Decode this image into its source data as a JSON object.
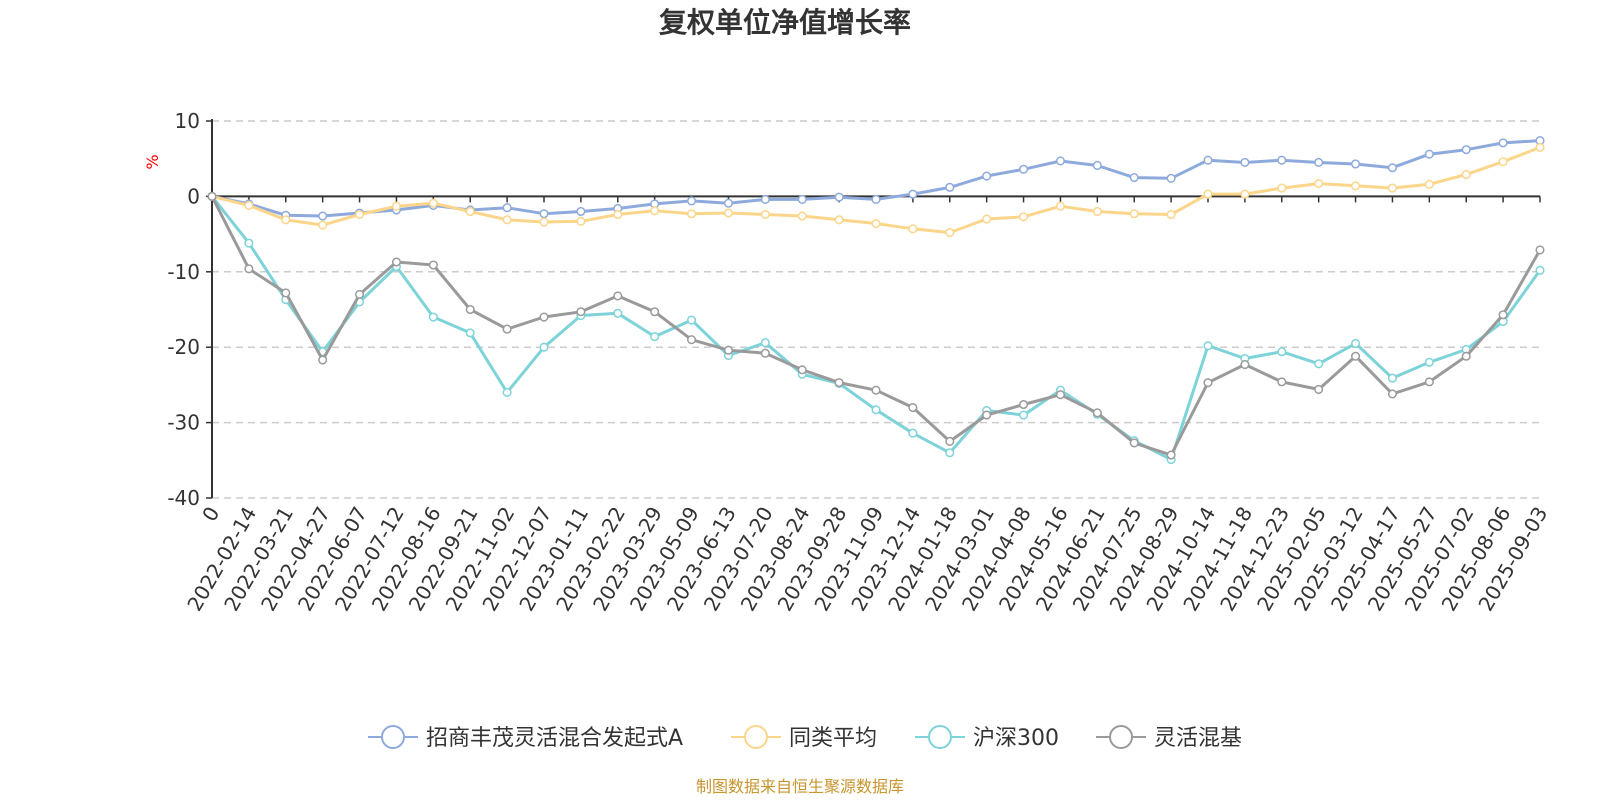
{
  "chart_data": {
    "type": "line",
    "title": "复权单位净值增长率",
    "ylabel": "%",
    "ylim": [
      -40,
      10
    ],
    "y_ticks": [
      10,
      0,
      -10,
      -20,
      -30,
      -40
    ],
    "grid": true,
    "legend_position": "bottom",
    "x_tick_labels": [
      "0",
      "2022-02-14",
      "2022-03-21",
      "2022-04-27",
      "2022-06-07",
      "2022-07-12",
      "2022-08-16",
      "2022-09-21",
      "2022-11-02",
      "2022-12-07",
      "2023-01-11",
      "2023-02-22",
      "2023-03-29",
      "2023-05-09",
      "2023-06-13",
      "2023-07-20",
      "2023-08-24",
      "2023-09-28",
      "2023-11-09",
      "2023-12-14",
      "2024-01-18",
      "2024-03-01",
      "2024-04-08",
      "2024-05-16",
      "2024-06-21",
      "2024-07-25",
      "2024-08-29",
      "2024-10-14",
      "2024-11-18",
      "2024-12-23",
      "2025-02-05",
      "2025-03-12",
      "2025-04-17",
      "2025-05-27",
      "2025-07-02",
      "2025-08-06",
      "2025-09-03"
    ],
    "series": [
      {
        "name": "招商丰茂灵活混合发起式A",
        "color": "#8eaadc",
        "values": [
          0,
          -1.0,
          -2.5,
          -2.6,
          -2.2,
          -1.8,
          -1.2,
          -1.8,
          -1.5,
          -2.3,
          -2.0,
          -1.6,
          -1.0,
          -0.6,
          -0.9,
          -0.4,
          -0.4,
          -0.1,
          -0.4,
          0.3,
          1.2,
          2.7,
          3.6,
          4.7,
          4.1,
          2.5,
          2.4,
          4.8,
          4.5,
          4.8,
          4.5,
          4.3,
          3.8,
          5.6,
          6.2,
          7.1,
          7.4
        ]
      },
      {
        "name": "同类平均",
        "color": "#fbd58a",
        "values": [
          0,
          -1.2,
          -3.1,
          -3.8,
          -2.4,
          -1.3,
          -0.9,
          -2.0,
          -3.1,
          -3.4,
          -3.3,
          -2.4,
          -1.9,
          -2.3,
          -2.2,
          -2.4,
          -2.6,
          -3.1,
          -3.6,
          -4.3,
          -4.8,
          -3.0,
          -2.7,
          -1.3,
          -2.0,
          -2.3,
          -2.4,
          0.3,
          0.3,
          1.1,
          1.7,
          1.4,
          1.1,
          1.6,
          2.9,
          4.6,
          6.5
        ]
      },
      {
        "name": "沪深300",
        "color": "#7dd3d8",
        "values": [
          0,
          -6.2,
          -13.7,
          -20.6,
          -14.0,
          -9.3,
          -16.0,
          -18.1,
          -26.0,
          -20.0,
          -15.8,
          -15.5,
          -18.6,
          -16.4,
          -21.1,
          -19.4,
          -23.6,
          -24.8,
          -28.3,
          -31.4,
          -34.0,
          -28.4,
          -29.0,
          -25.7,
          -28.9,
          -32.4,
          -34.9,
          -19.8,
          -21.5,
          -20.6,
          -22.2,
          -19.5,
          -24.1,
          -22.0,
          -20.3,
          -16.6,
          -9.8
        ]
      },
      {
        "name": "灵活混基",
        "color": "#9a9a9a",
        "values": [
          0,
          -9.6,
          -12.8,
          -21.7,
          -13.0,
          -8.7,
          -9.1,
          -15.0,
          -17.6,
          -16.0,
          -15.3,
          -13.2,
          -15.3,
          -19.0,
          -20.4,
          -20.8,
          -23.0,
          -24.7,
          -25.7,
          -28.0,
          -32.5,
          -29.0,
          -27.6,
          -26.3,
          -28.7,
          -32.7,
          -34.3,
          -24.7,
          -22.3,
          -24.6,
          -25.6,
          -21.2,
          -26.2,
          -24.6,
          -21.2,
          -15.7,
          -7.1
        ]
      }
    ],
    "source": "制图数据来自恒生聚源数据库"
  }
}
